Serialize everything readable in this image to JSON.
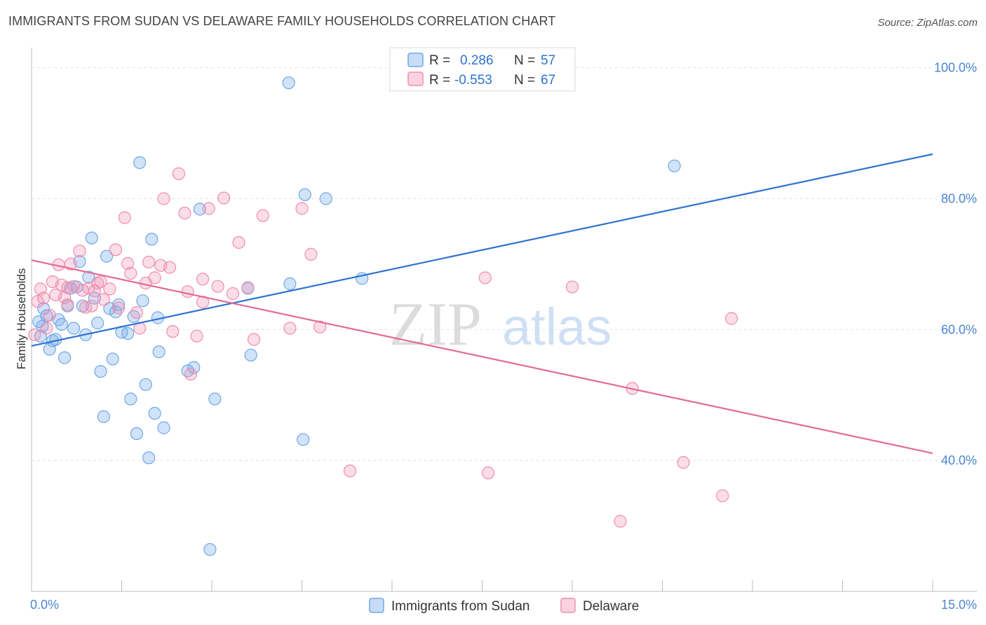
{
  "page": {
    "title": "IMMIGRANTS FROM SUDAN VS DELAWARE FAMILY HOUSEHOLDS CORRELATION CHART",
    "source": "Source: ZipAtlas.com"
  },
  "watermark": {
    "part1": "ZIP",
    "part2": "atlas"
  },
  "chart_data": {
    "type": "scatter",
    "title": "IMMIGRANTS FROM SUDAN VS DELAWARE FAMILY HOUSEHOLDS CORRELATION CHART",
    "xlabel": "",
    "ylabel": "Family Households",
    "xlim": [
      0,
      15
    ],
    "ylim": [
      20,
      102
    ],
    "x_tick_labels": [
      {
        "value": 0,
        "label": "0.0%"
      },
      {
        "value": 15,
        "label": "15.0%"
      }
    ],
    "y_tick_labels": [
      {
        "value": 40,
        "label": "40.0%"
      },
      {
        "value": 60,
        "label": "60.0%"
      },
      {
        "value": 80,
        "label": "80.0%"
      },
      {
        "value": 100,
        "label": "100.0%"
      }
    ],
    "grid": true,
    "legend": [
      {
        "name": "Immigrants from Sudan",
        "color": "#6fa8e8"
      },
      {
        "name": "Delaware",
        "color": "#f08db0"
      }
    ],
    "stats": [
      {
        "r_label": "R =",
        "r_value": "0.286",
        "n_label": "N =",
        "n_value": "57"
      },
      {
        "r_label": "R =",
        "r_value": "-0.553",
        "n_label": "N =",
        "n_value": "67"
      }
    ],
    "series": [
      {
        "name": "Immigrants from Sudan",
        "color": "#6fa8e8",
        "line_color": "#2f72d0",
        "trend": {
          "x": [
            0,
            15
          ],
          "y": [
            57.5,
            86.8
          ]
        },
        "points": [
          [
            0.12,
            61.2
          ],
          [
            0.18,
            60.5
          ],
          [
            0.25,
            62.1
          ],
          [
            0.3,
            57.0
          ],
          [
            0.35,
            58.3
          ],
          [
            0.4,
            58.5
          ],
          [
            0.5,
            60.8
          ],
          [
            0.55,
            55.7
          ],
          [
            0.6,
            63.6
          ],
          [
            0.65,
            66.3
          ],
          [
            0.7,
            60.2
          ],
          [
            0.8,
            70.4
          ],
          [
            0.85,
            63.6
          ],
          [
            0.9,
            59.2
          ],
          [
            0.95,
            68.0
          ],
          [
            1.0,
            74.0
          ],
          [
            1.05,
            64.8
          ],
          [
            1.1,
            61.0
          ],
          [
            1.15,
            53.6
          ],
          [
            1.2,
            46.7
          ],
          [
            1.25,
            71.2
          ],
          [
            1.3,
            63.2
          ],
          [
            1.35,
            55.5
          ],
          [
            1.4,
            62.7
          ],
          [
            1.45,
            63.8
          ],
          [
            1.5,
            59.6
          ],
          [
            1.6,
            59.4
          ],
          [
            1.65,
            49.4
          ],
          [
            1.7,
            62.0
          ],
          [
            1.75,
            44.1
          ],
          [
            1.8,
            85.5
          ],
          [
            1.85,
            64.4
          ],
          [
            1.9,
            51.6
          ],
          [
            1.95,
            40.4
          ],
          [
            2.0,
            73.8
          ],
          [
            2.05,
            47.2
          ],
          [
            2.1,
            61.8
          ],
          [
            2.12,
            56.6
          ],
          [
            2.2,
            45.0
          ],
          [
            2.6,
            53.7
          ],
          [
            2.7,
            54.2
          ],
          [
            2.8,
            78.4
          ],
          [
            2.97,
            26.4
          ],
          [
            3.05,
            49.4
          ],
          [
            3.6,
            66.3
          ],
          [
            3.65,
            56.1
          ],
          [
            4.28,
            97.7
          ],
          [
            4.3,
            67.0
          ],
          [
            4.52,
            43.2
          ],
          [
            4.55,
            80.6
          ],
          [
            4.9,
            80.0
          ],
          [
            5.5,
            67.8
          ],
          [
            10.7,
            85.0
          ],
          [
            0.15,
            59.0
          ],
          [
            0.2,
            63.2
          ],
          [
            0.45,
            61.5
          ],
          [
            0.75,
            66.5
          ]
        ]
      },
      {
        "name": "Delaware",
        "color": "#f08db0",
        "line_color": "#e46a95",
        "trend": {
          "x": [
            0,
            15
          ],
          "y": [
            70.6,
            41.1
          ]
        },
        "points": [
          [
            0.05,
            59.2
          ],
          [
            0.1,
            64.3
          ],
          [
            0.15,
            66.2
          ],
          [
            0.2,
            64.8
          ],
          [
            0.25,
            60.2
          ],
          [
            0.3,
            62.2
          ],
          [
            0.35,
            67.3
          ],
          [
            0.4,
            65.3
          ],
          [
            0.45,
            69.9
          ],
          [
            0.5,
            66.8
          ],
          [
            0.55,
            64.9
          ],
          [
            0.6,
            66.4
          ],
          [
            0.65,
            70.0
          ],
          [
            0.7,
            66.6
          ],
          [
            0.8,
            72.0
          ],
          [
            0.85,
            66.0
          ],
          [
            0.9,
            63.4
          ],
          [
            0.95,
            66.3
          ],
          [
            1.0,
            63.6
          ],
          [
            1.05,
            65.9
          ],
          [
            1.1,
            67.1
          ],
          [
            1.15,
            67.3
          ],
          [
            1.2,
            64.6
          ],
          [
            1.3,
            66.2
          ],
          [
            1.4,
            72.2
          ],
          [
            1.45,
            63.3
          ],
          [
            1.55,
            77.1
          ],
          [
            1.6,
            70.1
          ],
          [
            1.65,
            68.6
          ],
          [
            1.75,
            62.6
          ],
          [
            1.8,
            60.2
          ],
          [
            1.9,
            67.1
          ],
          [
            1.95,
            70.3
          ],
          [
            2.05,
            67.9
          ],
          [
            2.15,
            69.8
          ],
          [
            2.2,
            80.0
          ],
          [
            2.3,
            69.5
          ],
          [
            2.35,
            59.7
          ],
          [
            2.45,
            83.8
          ],
          [
            2.55,
            77.8
          ],
          [
            2.6,
            65.8
          ],
          [
            2.65,
            53.2
          ],
          [
            2.75,
            59.0
          ],
          [
            2.85,
            67.7
          ],
          [
            2.95,
            78.5
          ],
          [
            3.1,
            66.6
          ],
          [
            3.2,
            80.1
          ],
          [
            3.35,
            65.5
          ],
          [
            3.45,
            73.3
          ],
          [
            3.6,
            66.4
          ],
          [
            3.7,
            58.5
          ],
          [
            3.85,
            77.4
          ],
          [
            4.3,
            60.2
          ],
          [
            4.5,
            78.5
          ],
          [
            4.65,
            71.5
          ],
          [
            4.8,
            60.4
          ],
          [
            5.3,
            38.4
          ],
          [
            7.55,
            67.9
          ],
          [
            7.6,
            38.1
          ],
          [
            9.0,
            66.5
          ],
          [
            9.8,
            30.7
          ],
          [
            10.0,
            51.0
          ],
          [
            10.85,
            39.7
          ],
          [
            11.5,
            34.6
          ],
          [
            11.65,
            61.7
          ],
          [
            0.6,
            63.8
          ],
          [
            2.85,
            64.2
          ]
        ]
      }
    ]
  }
}
